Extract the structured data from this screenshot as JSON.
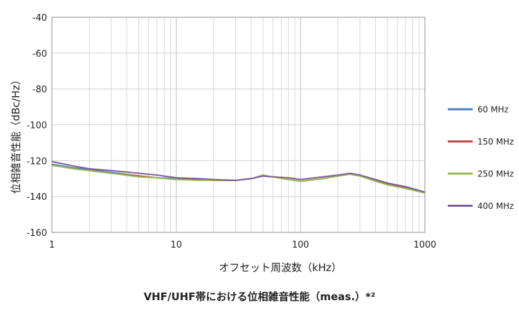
{
  "chart_data": {
    "type": "line",
    "title": "VHF/UHF帯における位相雑音性能（meas.）*²",
    "xlabel": "オフセット周波数（kHz）",
    "ylabel": "位相雑音性能（dBc/Hz）",
    "x_scale": "log",
    "xlim": [
      1,
      1000
    ],
    "ylim": [
      -160,
      -40
    ],
    "x_ticks": [
      1,
      10,
      100,
      1000
    ],
    "x_tick_labels": [
      "1",
      "10",
      "100",
      "1000"
    ],
    "y_ticks": [
      -40,
      -60,
      -80,
      -100,
      -120,
      -140,
      -160
    ],
    "y_tick_labels": [
      "-40",
      "-60",
      "-80",
      "-100",
      "-120",
      "-140",
      "-160"
    ],
    "grid": true,
    "legend_position": "right",
    "x": [
      1,
      1.5,
      2,
      3,
      5,
      7,
      10,
      15,
      20,
      30,
      40,
      50,
      60,
      80,
      100,
      150,
      200,
      250,
      300,
      400,
      500,
      700,
      1000
    ],
    "series": [
      {
        "name": "60 MHz",
        "color": "#4a7ebb",
        "values": [
          -122,
          -124,
          -125,
          -126.5,
          -128.5,
          -129.5,
          -130,
          -130.5,
          -131,
          -131,
          -130,
          -128.5,
          -129,
          -130.5,
          -131.5,
          -130,
          -128.5,
          -127.5,
          -128.5,
          -131,
          -133,
          -135,
          -138
        ]
      },
      {
        "name": "150 MHz",
        "color": "#be4b48",
        "values": [
          -122.5,
          -124.5,
          -125.5,
          -127,
          -128.5,
          -129.5,
          -130.5,
          -130.5,
          -131,
          -131,
          -130,
          -128.5,
          -129,
          -130.5,
          -131.5,
          -130,
          -128.5,
          -127.5,
          -128.5,
          -131,
          -133,
          -135,
          -138
        ]
      },
      {
        "name": "250 MHz",
        "color": "#98b954",
        "values": [
          -122.5,
          -124.5,
          -125.5,
          -127,
          -129,
          -129.5,
          -130.5,
          -131,
          -131,
          -131,
          -130,
          -128,
          -129,
          -130.5,
          -131.5,
          -130,
          -128.5,
          -127.5,
          -128.5,
          -131.5,
          -133.5,
          -135.5,
          -138
        ]
      },
      {
        "name": "400 MHz",
        "color": "#7d5fa0",
        "values": [
          -120.5,
          -123,
          -124.5,
          -125.5,
          -127,
          -128,
          -129.5,
          -130,
          -130.5,
          -131,
          -130,
          -128.5,
          -129,
          -129.5,
          -130.5,
          -129,
          -128,
          -127,
          -128,
          -130.5,
          -132.5,
          -134.5,
          -137.5
        ]
      }
    ]
  }
}
